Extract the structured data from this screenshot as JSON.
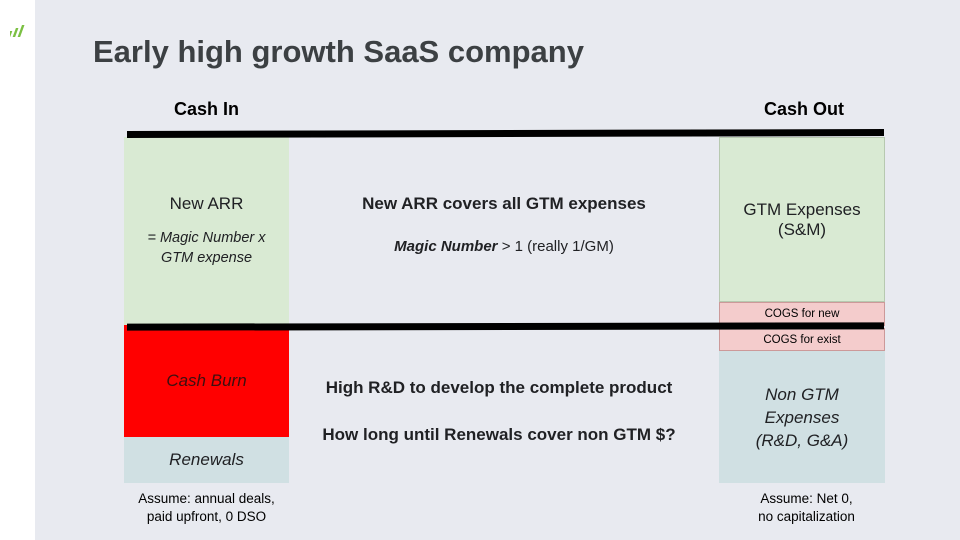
{
  "title": "Early high growth SaaS company",
  "colors": {
    "green_box": "#d9ead3",
    "red_box": "#ff0000",
    "blue_box": "#d0e0e3",
    "pink_box": "#f4cccc",
    "slide_bg": "#e8eaf0"
  },
  "cash_in": {
    "heading": "Cash In",
    "new_arr": {
      "label": "New ARR",
      "formula_line1": "= Magic Number x",
      "formula_line2": "GTM expense"
    },
    "cash_burn": "Cash Burn",
    "renewals": "Renewals",
    "note_line1": "Assume: annual deals,",
    "note_line2": "paid upfront, 0 DSO"
  },
  "middle": {
    "top_statement": "New ARR covers all GTM expenses",
    "magic_bold": "Magic Number",
    "magic_rest": " > 1 (really 1/GM)",
    "bottom_statement1": "High R&D to develop the complete product",
    "bottom_statement2": "How long until Renewals cover non GTM $?"
  },
  "cash_out": {
    "heading": "Cash Out",
    "gtm_line1": "GTM Expenses",
    "gtm_line2": "(S&M)",
    "cogs_new": "COGS for new",
    "cogs_exist": "COGS for exist",
    "non_gtm_line1": "Non GTM",
    "non_gtm_line2": "Expenses",
    "non_gtm_line3": "(R&D, G&A)",
    "note_line1": "Assume: Net 0,",
    "note_line2": "no capitalization"
  }
}
